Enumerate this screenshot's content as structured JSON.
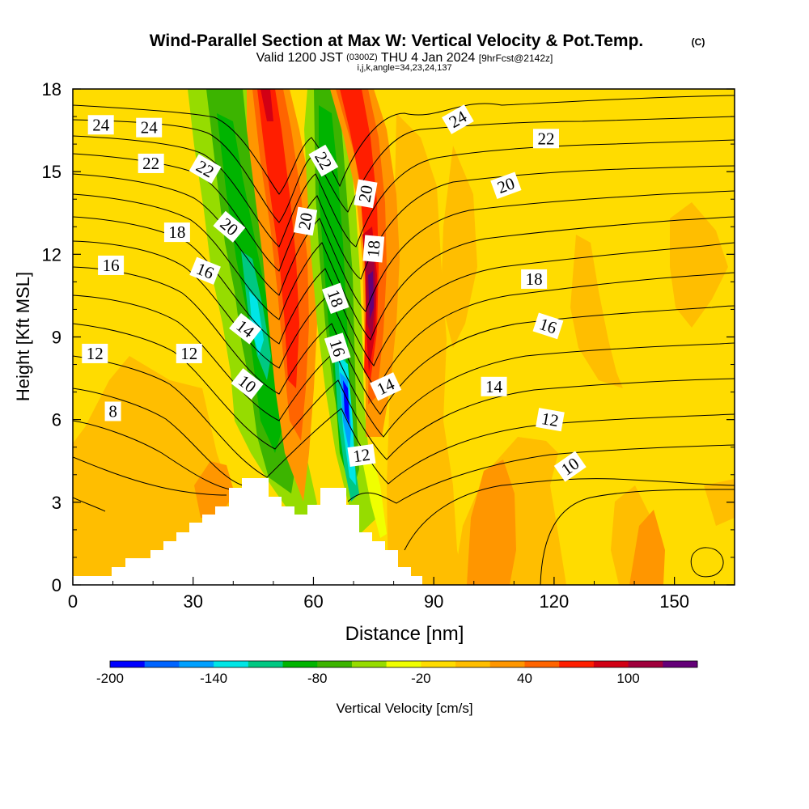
{
  "chart_data": {
    "type": "contour",
    "title": "Wind-Parallel Section at Max W: Vertical Velocity & Pot.Temp.",
    "title_mark": "(C)",
    "subtitle": {
      "valid_prefix": "Valid 1200 JST",
      "utc": "(0300Z)",
      "date": "THU 4 Jan 2024",
      "forecast": "[9hrFcst@2142z]"
    },
    "indices": "i,j,k,angle=34,23,24,137",
    "xlabel": "Distance [nm]",
    "ylabel": "Height [Kft MSL]",
    "xlim": [
      0,
      165
    ],
    "ylim": [
      0,
      18
    ],
    "x_ticks": [
      "0",
      "30",
      "60",
      "90",
      "120",
      "150"
    ],
    "y_ticks": [
      "0",
      "3",
      "6",
      "9",
      "12",
      "15",
      "18"
    ],
    "colorbar": {
      "label": "Vertical Velocity [cm/s]",
      "tick_labels": [
        "-200",
        "-140",
        "-80",
        "-20",
        "40",
        "100"
      ],
      "colors": [
        "#0000ff",
        "#0064ff",
        "#00a0ff",
        "#00e6e6",
        "#00c882",
        "#00b400",
        "#3cb400",
        "#96dc00",
        "#f0ff00",
        "#ffdc00",
        "#ffbe00",
        "#ff9600",
        "#ff6400",
        "#ff1e00",
        "#d20014",
        "#a0003c",
        "#640078"
      ]
    },
    "contour_labels": [
      {
        "text": "24",
        "x": 7,
        "y": 16.7,
        "rot": 0
      },
      {
        "text": "24",
        "x": 19,
        "y": 16.6,
        "rot": 0
      },
      {
        "text": "22",
        "x": 19.5,
        "y": 15.3,
        "rot": 0
      },
      {
        "text": "22",
        "x": 33,
        "y": 15.1,
        "rot": 30
      },
      {
        "text": "18",
        "x": 26,
        "y": 12.8,
        "rot": 0
      },
      {
        "text": "20",
        "x": 39,
        "y": 13.0,
        "rot": 40
      },
      {
        "text": "16",
        "x": 9.5,
        "y": 11.6,
        "rot": 0
      },
      {
        "text": "16",
        "x": 33,
        "y": 11.4,
        "rot": 22
      },
      {
        "text": "14",
        "x": 43,
        "y": 9.3,
        "rot": 38
      },
      {
        "text": "12",
        "x": 5.5,
        "y": 8.4,
        "rot": 0
      },
      {
        "text": "12",
        "x": 29,
        "y": 8.4,
        "rot": 0
      },
      {
        "text": "10",
        "x": 43.5,
        "y": 7.3,
        "rot": 38
      },
      {
        "text": "8",
        "x": 10,
        "y": 6.3,
        "rot": 0
      },
      {
        "text": "20",
        "x": 58,
        "y": 13.2,
        "rot": -80
      },
      {
        "text": "22",
        "x": 62.5,
        "y": 15.4,
        "rot": 60
      },
      {
        "text": "20",
        "x": 73,
        "y": 14.2,
        "rot": -80
      },
      {
        "text": "18",
        "x": 75,
        "y": 12.2,
        "rot": -85
      },
      {
        "text": "18",
        "x": 65.5,
        "y": 10.4,
        "rot": 70
      },
      {
        "text": "16",
        "x": 66,
        "y": 8.6,
        "rot": 72
      },
      {
        "text": "14",
        "x": 78,
        "y": 7.2,
        "rot": -25
      },
      {
        "text": "12",
        "x": 72,
        "y": 4.7,
        "rot": -8
      },
      {
        "text": "24",
        "x": 96,
        "y": 16.9,
        "rot": -30
      },
      {
        "text": "22",
        "x": 118,
        "y": 16.2,
        "rot": 0
      },
      {
        "text": "20",
        "x": 108,
        "y": 14.5,
        "rot": -20
      },
      {
        "text": "18",
        "x": 115,
        "y": 11.1,
        "rot": 0
      },
      {
        "text": "16",
        "x": 118.5,
        "y": 9.4,
        "rot": 18
      },
      {
        "text": "14",
        "x": 105,
        "y": 7.2,
        "rot": 0
      },
      {
        "text": "12",
        "x": 119,
        "y": 6.0,
        "rot": 10
      },
      {
        "text": "10",
        "x": 124,
        "y": 4.3,
        "rot": -35
      }
    ]
  }
}
